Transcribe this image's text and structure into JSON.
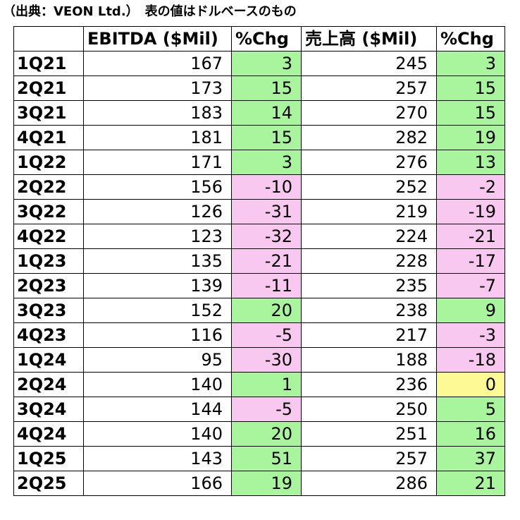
{
  "caption": "（出典：VEON Ltd.）　表の値はドルベースのもの",
  "columns": [
    "",
    "EBITDA ($Mil)",
    "%Chg",
    "売上高 ($Mil)",
    "%Chg"
  ],
  "colors": {
    "positive": "#a9f59e",
    "negative": "#f9c8f1",
    "zero": "#fdfa96"
  },
  "rows": [
    {
      "quarter": "1Q21",
      "ebitda": "167",
      "ebitda_chg": "3",
      "sales": "245",
      "sales_chg": "3"
    },
    {
      "quarter": "2Q21",
      "ebitda": "173",
      "ebitda_chg": "15",
      "sales": "257",
      "sales_chg": "15"
    },
    {
      "quarter": "3Q21",
      "ebitda": "183",
      "ebitda_chg": "14",
      "sales": "270",
      "sales_chg": "15"
    },
    {
      "quarter": "4Q21",
      "ebitda": "181",
      "ebitda_chg": "15",
      "sales": "282",
      "sales_chg": "19"
    },
    {
      "quarter": "1Q22",
      "ebitda": "171",
      "ebitda_chg": "3",
      "sales": "276",
      "sales_chg": "13"
    },
    {
      "quarter": "2Q22",
      "ebitda": "156",
      "ebitda_chg": "-10",
      "sales": "252",
      "sales_chg": "-2"
    },
    {
      "quarter": "3Q22",
      "ebitda": "126",
      "ebitda_chg": "-31",
      "sales": "219",
      "sales_chg": "-19"
    },
    {
      "quarter": "4Q22",
      "ebitda": "123",
      "ebitda_chg": "-32",
      "sales": "224",
      "sales_chg": "-21"
    },
    {
      "quarter": "1Q23",
      "ebitda": "135",
      "ebitda_chg": "-21",
      "sales": "228",
      "sales_chg": "-17"
    },
    {
      "quarter": "2Q23",
      "ebitda": "139",
      "ebitda_chg": "-11",
      "sales": "235",
      "sales_chg": "-7"
    },
    {
      "quarter": "3Q23",
      "ebitda": "152",
      "ebitda_chg": "20",
      "sales": "238",
      "sales_chg": "9"
    },
    {
      "quarter": "4Q23",
      "ebitda": "116",
      "ebitda_chg": "-5",
      "sales": "217",
      "sales_chg": "-3"
    },
    {
      "quarter": "1Q24",
      "ebitda": "95",
      "ebitda_chg": "-30",
      "sales": "188",
      "sales_chg": "-18"
    },
    {
      "quarter": "2Q24",
      "ebitda": "140",
      "ebitda_chg": "1",
      "sales": "236",
      "sales_chg": "0"
    },
    {
      "quarter": "3Q24",
      "ebitda": "144",
      "ebitda_chg": "-5",
      "sales": "250",
      "sales_chg": "5"
    },
    {
      "quarter": "4Q24",
      "ebitda": "140",
      "ebitda_chg": "20",
      "sales": "251",
      "sales_chg": "16"
    },
    {
      "quarter": "1Q25",
      "ebitda": "143",
      "ebitda_chg": "51",
      "sales": "257",
      "sales_chg": "37"
    },
    {
      "quarter": "2Q25",
      "ebitda": "166",
      "ebitda_chg": "19",
      "sales": "286",
      "sales_chg": "21"
    }
  ]
}
